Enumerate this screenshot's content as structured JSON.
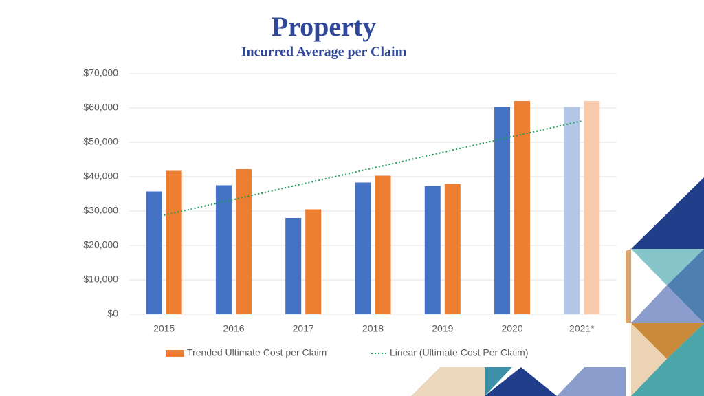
{
  "chart_data": {
    "type": "bar",
    "title": "Property",
    "subtitle": "Incurred Average per Claim",
    "categories": [
      "2015",
      "2016",
      "2017",
      "2018",
      "2019",
      "2020",
      "2021*"
    ],
    "series": [
      {
        "colors": [
          "#4472c4",
          "#4472c4",
          "#4472c4",
          "#4472c4",
          "#4472c4",
          "#4472c4",
          "#b4c7e7"
        ],
        "values": [
          35700,
          37500,
          28000,
          38300,
          37300,
          60300,
          60300
        ]
      },
      {
        "name": "Trended Ultimate Cost per Claim",
        "color": "#ed7d31",
        "colors": [
          "#ed7d31",
          "#ed7d31",
          "#ed7d31",
          "#ed7d31",
          "#ed7d31",
          "#ed7d31",
          "#f8cbad"
        ],
        "values": [
          41700,
          42200,
          30500,
          40300,
          37900,
          62000,
          62000
        ]
      }
    ],
    "trendline": {
      "name": "Linear (Ultimate Cost Per Claim)",
      "color": "#1e9e5a",
      "values": [
        28800,
        33367,
        37933,
        42500,
        47067,
        51633,
        56200
      ]
    },
    "ylim": [
      0,
      70000
    ],
    "yticks": [
      {
        "value": 0,
        "label": "$0"
      },
      {
        "value": 10000,
        "label": "$10,000"
      },
      {
        "value": 20000,
        "label": "$20,000"
      },
      {
        "value": 30000,
        "label": "$30,000"
      },
      {
        "value": 40000,
        "label": "$40,000"
      },
      {
        "value": 50000,
        "label": "$50,000"
      },
      {
        "value": 60000,
        "label": "$60,000"
      },
      {
        "value": 70000,
        "label": "$70,000"
      }
    ],
    "grid": true
  }
}
